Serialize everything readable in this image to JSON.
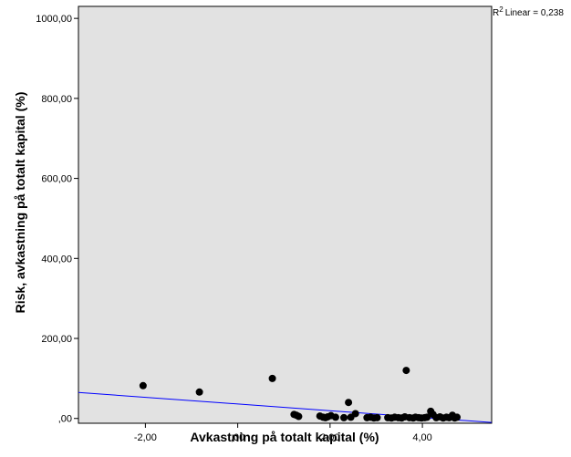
{
  "chart_data": {
    "type": "scatter",
    "xlabel": "Avkastning på totalt kapital (%)",
    "ylabel": "Risk, avkastning på totalt kapital  (%)",
    "xlim": [
      -3.45,
      5.5
    ],
    "ylim": [
      -12,
      1030
    ],
    "x_ticks": [
      {
        "value": -2,
        "label": "-2,00"
      },
      {
        "value": 0,
        "label": ",00"
      },
      {
        "value": 2,
        "label": "2,00"
      },
      {
        "value": 4,
        "label": "4,00"
      }
    ],
    "y_ticks": [
      {
        "value": 0,
        "label": ",00"
      },
      {
        "value": 200,
        "label": "200,00"
      },
      {
        "value": 400,
        "label": "400,00"
      },
      {
        "value": 600,
        "label": "600,00"
      },
      {
        "value": 800,
        "label": "800,00"
      },
      {
        "value": 1000,
        "label": "1000,00"
      }
    ],
    "points": [
      {
        "x": -2.05,
        "y": 82
      },
      {
        "x": -0.83,
        "y": 66
      },
      {
        "x": 0.75,
        "y": 100
      },
      {
        "x": 1.22,
        "y": 10
      },
      {
        "x": 1.27,
        "y": 8
      },
      {
        "x": 1.32,
        "y": 5
      },
      {
        "x": 1.78,
        "y": 6
      },
      {
        "x": 1.85,
        "y": 3
      },
      {
        "x": 1.9,
        "y": 2
      },
      {
        "x": 1.95,
        "y": 4
      },
      {
        "x": 2.02,
        "y": 7
      },
      {
        "x": 2.12,
        "y": 3
      },
      {
        "x": 2.3,
        "y": 2
      },
      {
        "x": 2.4,
        "y": 40
      },
      {
        "x": 2.45,
        "y": 3
      },
      {
        "x": 2.55,
        "y": 12
      },
      {
        "x": 2.8,
        "y": 2
      },
      {
        "x": 2.88,
        "y": 3
      },
      {
        "x": 2.95,
        "y": 1
      },
      {
        "x": 3.02,
        "y": 2
      },
      {
        "x": 3.25,
        "y": 2
      },
      {
        "x": 3.33,
        "y": 1
      },
      {
        "x": 3.4,
        "y": 3
      },
      {
        "x": 3.48,
        "y": 2
      },
      {
        "x": 3.55,
        "y": 1
      },
      {
        "x": 3.62,
        "y": 4
      },
      {
        "x": 3.65,
        "y": 120
      },
      {
        "x": 3.72,
        "y": 2
      },
      {
        "x": 3.8,
        "y": 1
      },
      {
        "x": 3.85,
        "y": 3
      },
      {
        "x": 3.92,
        "y": 2
      },
      {
        "x": 3.98,
        "y": 1
      },
      {
        "x": 4.05,
        "y": 2
      },
      {
        "x": 4.1,
        "y": 3
      },
      {
        "x": 4.18,
        "y": 18
      },
      {
        "x": 4.23,
        "y": 10
      },
      {
        "x": 4.3,
        "y": 2
      },
      {
        "x": 4.38,
        "y": 4
      },
      {
        "x": 4.45,
        "y": 1
      },
      {
        "x": 4.52,
        "y": 3
      },
      {
        "x": 4.58,
        "y": 2
      },
      {
        "x": 4.65,
        "y": 8
      },
      {
        "x": 4.7,
        "y": 1
      },
      {
        "x": 4.75,
        "y": 3
      }
    ],
    "fit_line": {
      "x1": -3.45,
      "y1": 65,
      "x2": 5.5,
      "y2": -10,
      "color": "#0000ff"
    },
    "r2_label": "Linear = 0,238",
    "r2_prefix": "R",
    "r2_sup": "2",
    "point_color": "#000000",
    "plot_background": "#e2e2e2",
    "grid": false
  }
}
